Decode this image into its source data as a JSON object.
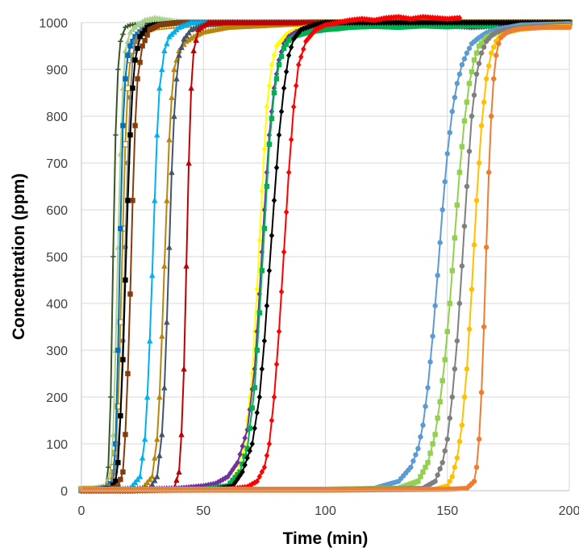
{
  "chart_data": {
    "type": "line",
    "title": "",
    "xlabel": "Time (min)",
    "ylabel": "Concentration (ppm)",
    "xlim": [
      0,
      200
    ],
    "ylim": [
      0,
      1000
    ],
    "x_ticks": [
      "0",
      "50",
      "100",
      "150",
      "200"
    ],
    "y_ticks": [
      "0",
      "100",
      "200",
      "300",
      "400",
      "500",
      "600",
      "700",
      "800",
      "900",
      "1000"
    ],
    "grid": true,
    "legend": "none",
    "series": [
      {
        "color": "#375623",
        "marker": "plus",
        "x": [
          0,
          5,
          10,
          11,
          12,
          13,
          14,
          15,
          16,
          18,
          20,
          25,
          30,
          40,
          60,
          80,
          100,
          130,
          160,
          200
        ],
        "y": [
          5,
          5,
          10,
          50,
          200,
          500,
          760,
          900,
          960,
          990,
          995,
          998,
          999,
          999,
          1000,
          1000,
          1000,
          1000,
          1000,
          1000
        ]
      },
      {
        "color": "#a9d18e",
        "marker": "triangle",
        "x": [
          0,
          5,
          10,
          12,
          13,
          14,
          15,
          16,
          17,
          18,
          20,
          23,
          26,
          30,
          40,
          60,
          100,
          150,
          200
        ],
        "y": [
          5,
          5,
          10,
          40,
          120,
          300,
          520,
          720,
          860,
          940,
          980,
          995,
          1005,
          1010,
          1002,
          1000,
          1000,
          1000,
          1000
        ]
      },
      {
        "color": "#bf9000",
        "marker": "square-open",
        "x": [
          0,
          5,
          10,
          12,
          14,
          15,
          16,
          17,
          18,
          19,
          20,
          22,
          25,
          30,
          40,
          60,
          100,
          150,
          200
        ],
        "y": [
          3,
          3,
          5,
          20,
          80,
          180,
          360,
          560,
          740,
          860,
          920,
          960,
          980,
          990,
          995,
          998,
          1000,
          1000,
          1000
        ]
      },
      {
        "color": "#0070c0",
        "marker": "square",
        "x": [
          0,
          5,
          10,
          13,
          14,
          15,
          16,
          17,
          18,
          19,
          20,
          22,
          25,
          30,
          40,
          60,
          100,
          150,
          200
        ],
        "y": [
          3,
          3,
          5,
          20,
          100,
          300,
          560,
          780,
          880,
          930,
          950,
          970,
          985,
          995,
          1000,
          1000,
          1000,
          1000,
          1000
        ]
      },
      {
        "color": "#808080",
        "marker": "circle",
        "x": [
          0,
          5,
          12,
          14,
          16,
          17,
          18,
          19,
          20,
          21,
          22,
          25,
          30,
          40,
          60,
          100,
          150,
          200
        ],
        "y": [
          3,
          3,
          10,
          40,
          160,
          320,
          520,
          700,
          840,
          920,
          960,
          985,
          995,
          1000,
          1000,
          1000,
          1000,
          1000
        ]
      },
      {
        "color": "#000000",
        "marker": "square",
        "x": [
          0,
          5,
          12,
          14,
          15,
          16,
          17,
          18,
          19,
          20,
          21,
          22,
          24,
          27,
          30,
          40,
          60,
          100,
          150,
          200
        ],
        "y": [
          2,
          2,
          5,
          20,
          60,
          160,
          280,
          450,
          620,
          760,
          860,
          920,
          970,
          990,
          995,
          1000,
          1000,
          1000,
          1000,
          1000
        ]
      },
      {
        "color": "#843c0c",
        "marker": "square",
        "x": [
          0,
          10,
          15,
          17,
          18,
          19,
          20,
          21,
          22,
          23,
          25,
          28,
          32,
          40,
          60,
          100,
          150,
          200
        ],
        "y": [
          2,
          2,
          8,
          40,
          120,
          250,
          420,
          620,
          780,
          880,
          950,
          985,
          995,
          1000,
          1000,
          1000,
          1000,
          1000
        ]
      },
      {
        "color": "#00b0f0",
        "marker": "triangle",
        "x": [
          0,
          10,
          20,
          24,
          26,
          27,
          28,
          29,
          30,
          31,
          32,
          34,
          36,
          40,
          45,
          50,
          60,
          100,
          150,
          200
        ],
        "y": [
          1,
          1,
          5,
          30,
          110,
          200,
          320,
          460,
          620,
          760,
          860,
          940,
          970,
          990,
          1000,
          1000,
          1000,
          1000,
          1000,
          1000
        ]
      },
      {
        "color": "#b8860b",
        "marker": "triangle",
        "x": [
          0,
          10,
          25,
          29,
          31,
          32,
          33,
          34,
          35,
          36,
          37,
          38,
          40,
          43,
          46,
          50,
          55,
          60,
          80,
          100,
          150,
          200
        ],
        "y": [
          1,
          1,
          5,
          30,
          110,
          200,
          330,
          480,
          620,
          750,
          840,
          900,
          940,
          960,
          970,
          980,
          985,
          990,
          995,
          1000,
          1000,
          1000
        ]
      },
      {
        "color": "#44546a",
        "marker": "triangle",
        "x": [
          0,
          10,
          28,
          31,
          33,
          34,
          35,
          36,
          37,
          38,
          39,
          40,
          42,
          45,
          50,
          60,
          100,
          150,
          200
        ],
        "y": [
          1,
          1,
          5,
          30,
          120,
          220,
          360,
          520,
          680,
          800,
          880,
          930,
          965,
          985,
          995,
          1000,
          1000,
          1000,
          1000
        ]
      },
      {
        "color": "#c00000",
        "marker": "triangle",
        "x": [
          0,
          10,
          38,
          40,
          41,
          42,
          43,
          44,
          45,
          46,
          48,
          52,
          60,
          100,
          150,
          200
        ],
        "y": [
          1,
          1,
          5,
          40,
          120,
          260,
          480,
          700,
          860,
          940,
          985,
          1000,
          1000,
          1000,
          1000,
          1000
        ]
      },
      {
        "color": "#ffff00",
        "marker": "diamond",
        "x": [
          0,
          20,
          50,
          60,
          64,
          67,
          70,
          72,
          74,
          76,
          78,
          80,
          84,
          88,
          92,
          96,
          100,
          110,
          130,
          150,
          200
        ],
        "y": [
          0,
          0,
          2,
          10,
          40,
          100,
          250,
          430,
          640,
          820,
          910,
          950,
          975,
          985,
          990,
          995,
          998,
          1000,
          1000,
          1000,
          1000
        ]
      },
      {
        "color": "#7030a0",
        "marker": "diamond",
        "x": [
          0,
          10,
          20,
          40,
          50,
          55,
          60,
          64,
          68,
          71,
          73,
          75,
          77,
          79,
          81,
          83,
          85,
          88,
          92,
          96,
          100,
          110,
          130,
          160,
          180,
          200
        ],
        "y": [
          0,
          0,
          2,
          5,
          10,
          15,
          30,
          60,
          130,
          260,
          420,
          600,
          760,
          860,
          920,
          955,
          970,
          980,
          988,
          992,
          995,
          998,
          1000,
          990,
          995,
          1000
        ]
      },
      {
        "color": "#00b050",
        "marker": "square",
        "x": [
          0,
          20,
          50,
          60,
          65,
          68,
          71,
          73,
          75,
          77,
          79,
          81,
          83,
          85,
          88,
          92,
          96,
          100,
          105,
          110,
          120,
          130,
          140,
          150,
          160,
          170
        ],
        "y": [
          0,
          0,
          3,
          10,
          40,
          90,
          220,
          380,
          560,
          740,
          850,
          910,
          945,
          962,
          972,
          978,
          982,
          985,
          987,
          990,
          992,
          990,
          993,
          991,
          994,
          993
        ]
      },
      {
        "color": "#000001",
        "marker": "diamond",
        "x": [
          0,
          20,
          55,
          62,
          66,
          70,
          73,
          75,
          77,
          79,
          81,
          83,
          85,
          87,
          90,
          95,
          100,
          120,
          150,
          200
        ],
        "y": [
          0,
          0,
          3,
          10,
          40,
          100,
          200,
          320,
          470,
          620,
          760,
          860,
          930,
          965,
          985,
          995,
          1000,
          1000,
          1000,
          1000
        ]
      },
      {
        "color": "#ff0000",
        "marker": "diamond",
        "x": [
          0,
          20,
          60,
          68,
          72,
          75,
          77,
          79,
          81,
          83,
          85,
          87,
          89,
          92,
          96,
          100,
          105,
          110,
          115,
          120,
          125,
          130,
          135,
          140,
          145,
          150,
          155
        ],
        "y": [
          0,
          0,
          3,
          8,
          20,
          50,
          100,
          200,
          340,
          510,
          680,
          820,
          910,
          960,
          985,
          995,
          1000,
          1005,
          1008,
          1005,
          1010,
          1012,
          1008,
          1012,
          1010,
          1008,
          1010
        ]
      },
      {
        "color": "#5b9bd5",
        "marker": "circle",
        "x": [
          0,
          50,
          100,
          120,
          130,
          135,
          138,
          140,
          142,
          144,
          146,
          148,
          150,
          152,
          154,
          156,
          158,
          160,
          163,
          166,
          170,
          175,
          180,
          200
        ],
        "y": [
          2,
          2,
          3,
          5,
          20,
          50,
          90,
          140,
          220,
          330,
          460,
          600,
          720,
          810,
          870,
          910,
          935,
          955,
          968,
          978,
          985,
          990,
          995,
          998
        ]
      },
      {
        "color": "#92d050",
        "marker": "square",
        "x": [
          0,
          50,
          100,
          130,
          138,
          142,
          145,
          147,
          149,
          151,
          153,
          155,
          157,
          159,
          161,
          163,
          166,
          170,
          175,
          180,
          190,
          200
        ],
        "y": [
          3,
          3,
          3,
          5,
          20,
          60,
          120,
          190,
          280,
          400,
          540,
          680,
          790,
          870,
          920,
          950,
          968,
          978,
          985,
          990,
          993,
          995
        ]
      },
      {
        "color": "#7f7f7f",
        "marker": "circle",
        "x": [
          0,
          50,
          100,
          140,
          145,
          148,
          150,
          152,
          154,
          156,
          158,
          160,
          162,
          164,
          166,
          168,
          170,
          175,
          180,
          190,
          200
        ],
        "y": [
          2,
          2,
          2,
          5,
          20,
          60,
          110,
          200,
          320,
          480,
          650,
          800,
          890,
          935,
          960,
          972,
          980,
          986,
          990,
          993,
          995
        ]
      },
      {
        "color": "#ffc000",
        "marker": "circle",
        "x": [
          0,
          50,
          100,
          145,
          150,
          152,
          154,
          156,
          158,
          160,
          162,
          164,
          166,
          168,
          170,
          172,
          175,
          180,
          190,
          200
        ],
        "y": [
          1,
          1,
          1,
          3,
          10,
          30,
          70,
          140,
          260,
          430,
          620,
          780,
          880,
          935,
          960,
          972,
          980,
          986,
          990,
          992
        ]
      },
      {
        "color": "#ed7d31",
        "marker": "circle",
        "x": [
          0,
          50,
          100,
          150,
          158,
          161,
          162,
          163,
          164,
          165,
          166,
          167,
          168,
          169,
          170,
          171,
          172,
          174,
          177,
          180,
          190,
          200
        ],
        "y": [
          1,
          1,
          1,
          3,
          5,
          20,
          50,
          110,
          210,
          350,
          520,
          680,
          800,
          880,
          930,
          955,
          968,
          978,
          984,
          987,
          990,
          990
        ]
      }
    ]
  }
}
